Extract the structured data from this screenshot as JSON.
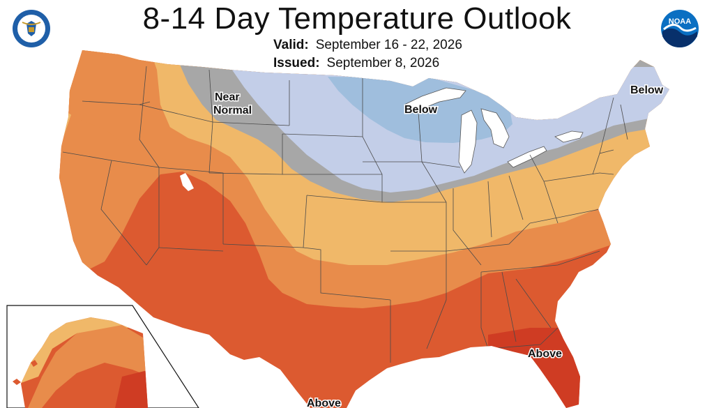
{
  "header": {
    "title": "8-14 Day Temperature Outlook",
    "valid_label": "Valid:",
    "valid_value": "September 16 - 22, 2026",
    "issued_label": "Issued:",
    "issued_value": "September 8, 2026"
  },
  "logos": {
    "left": "department-of-commerce-seal",
    "right": "noaa-logo",
    "noaa_text": "NOAA"
  },
  "map": {
    "labels": {
      "near_normal_1": "Near",
      "near_normal_2": "Normal",
      "below_midwest": "Below",
      "below_northeast": "Below",
      "above_florida": "Above",
      "above_texas": "Above"
    },
    "category_colors": {
      "below": "#c3cee8",
      "below_stronger": "#9fbedd",
      "near_normal": "#a7a7a7",
      "above_light": "#f0b869",
      "above_moderate": "#e88c4b",
      "above_strong": "#dc5a30",
      "above_very_strong": "#cf3c23"
    }
  }
}
